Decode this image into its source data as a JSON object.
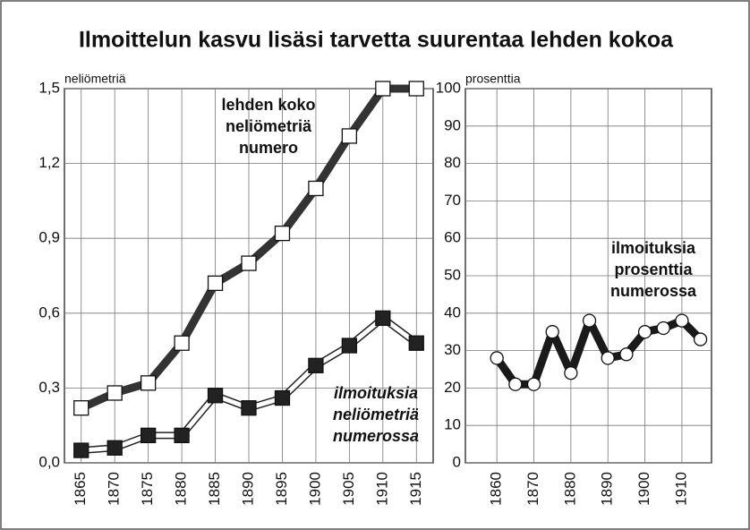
{
  "title": "Ilmoittelun kasvu lisäsi tarvetta suurentaa lehden kokoa",
  "chart_data": [
    {
      "type": "line",
      "y_label": "neliömetriä",
      "x": [
        1865,
        1870,
        1875,
        1880,
        1885,
        1890,
        1895,
        1900,
        1905,
        1910,
        1915
      ],
      "xlim": [
        1862.5,
        1917.5
      ],
      "xticks": [
        1865,
        1870,
        1875,
        1880,
        1885,
        1890,
        1895,
        1900,
        1905,
        1910,
        1915
      ],
      "ylim": [
        0,
        1.5
      ],
      "yticks": [
        {
          "value": 0,
          "label": "0,0"
        },
        {
          "value": 0.3,
          "label": "0,3"
        },
        {
          "value": 0.6,
          "label": "0,6"
        },
        {
          "value": 0.9,
          "label": "0,9"
        },
        {
          "value": 1.2,
          "label": "1,2"
        },
        {
          "value": 1.5,
          "label": "1,5"
        }
      ],
      "grid": true,
      "series": [
        {
          "color": "#333333",
          "line_style": "thick",
          "marker": "square",
          "marker_fill": "#ffffff",
          "values": [
            0.22,
            0.28,
            0.32,
            0.48,
            0.72,
            0.8,
            0.92,
            1.1,
            1.31,
            1.5,
            1.5
          ]
        },
        {
          "color": "#222222",
          "line_style": "double",
          "marker": "square",
          "marker_fill": "#222222",
          "values": [
            0.05,
            0.06,
            0.11,
            0.11,
            0.27,
            0.22,
            0.26,
            0.39,
            0.47,
            0.58,
            0.48
          ]
        }
      ],
      "annotations": [
        {
          "lines": [
            "lehden koko",
            "neliömetriä",
            "numero"
          ],
          "italic": false
        },
        {
          "lines": [
            "ilmoituksia",
            "neliömetriä",
            "numerossa"
          ],
          "italic": true
        }
      ]
    },
    {
      "type": "line",
      "y_label": "prosenttia",
      "x": [
        1860,
        1865,
        1870,
        1875,
        1880,
        1885,
        1890,
        1895,
        1900,
        1905,
        1910,
        1915
      ],
      "xlim": [
        1851.5,
        1918
      ],
      "xticks": [
        1860,
        1870,
        1880,
        1890,
        1900,
        1910
      ],
      "ylim": [
        0,
        100
      ],
      "yticks": [
        0,
        10,
        20,
        30,
        40,
        50,
        60,
        70,
        80,
        90,
        100
      ],
      "grid": true,
      "series": [
        {
          "color": "#1a1a1a",
          "line_style": "thick",
          "marker": "circle",
          "marker_fill": "#ffffff",
          "values": [
            28,
            21,
            21,
            35,
            24,
            38,
            28,
            29,
            35,
            36,
            38,
            33
          ]
        }
      ],
      "annotations": [
        {
          "lines": [
            "ilmoituksia",
            "prosenttia",
            "numerossa"
          ],
          "italic": false
        }
      ]
    }
  ]
}
